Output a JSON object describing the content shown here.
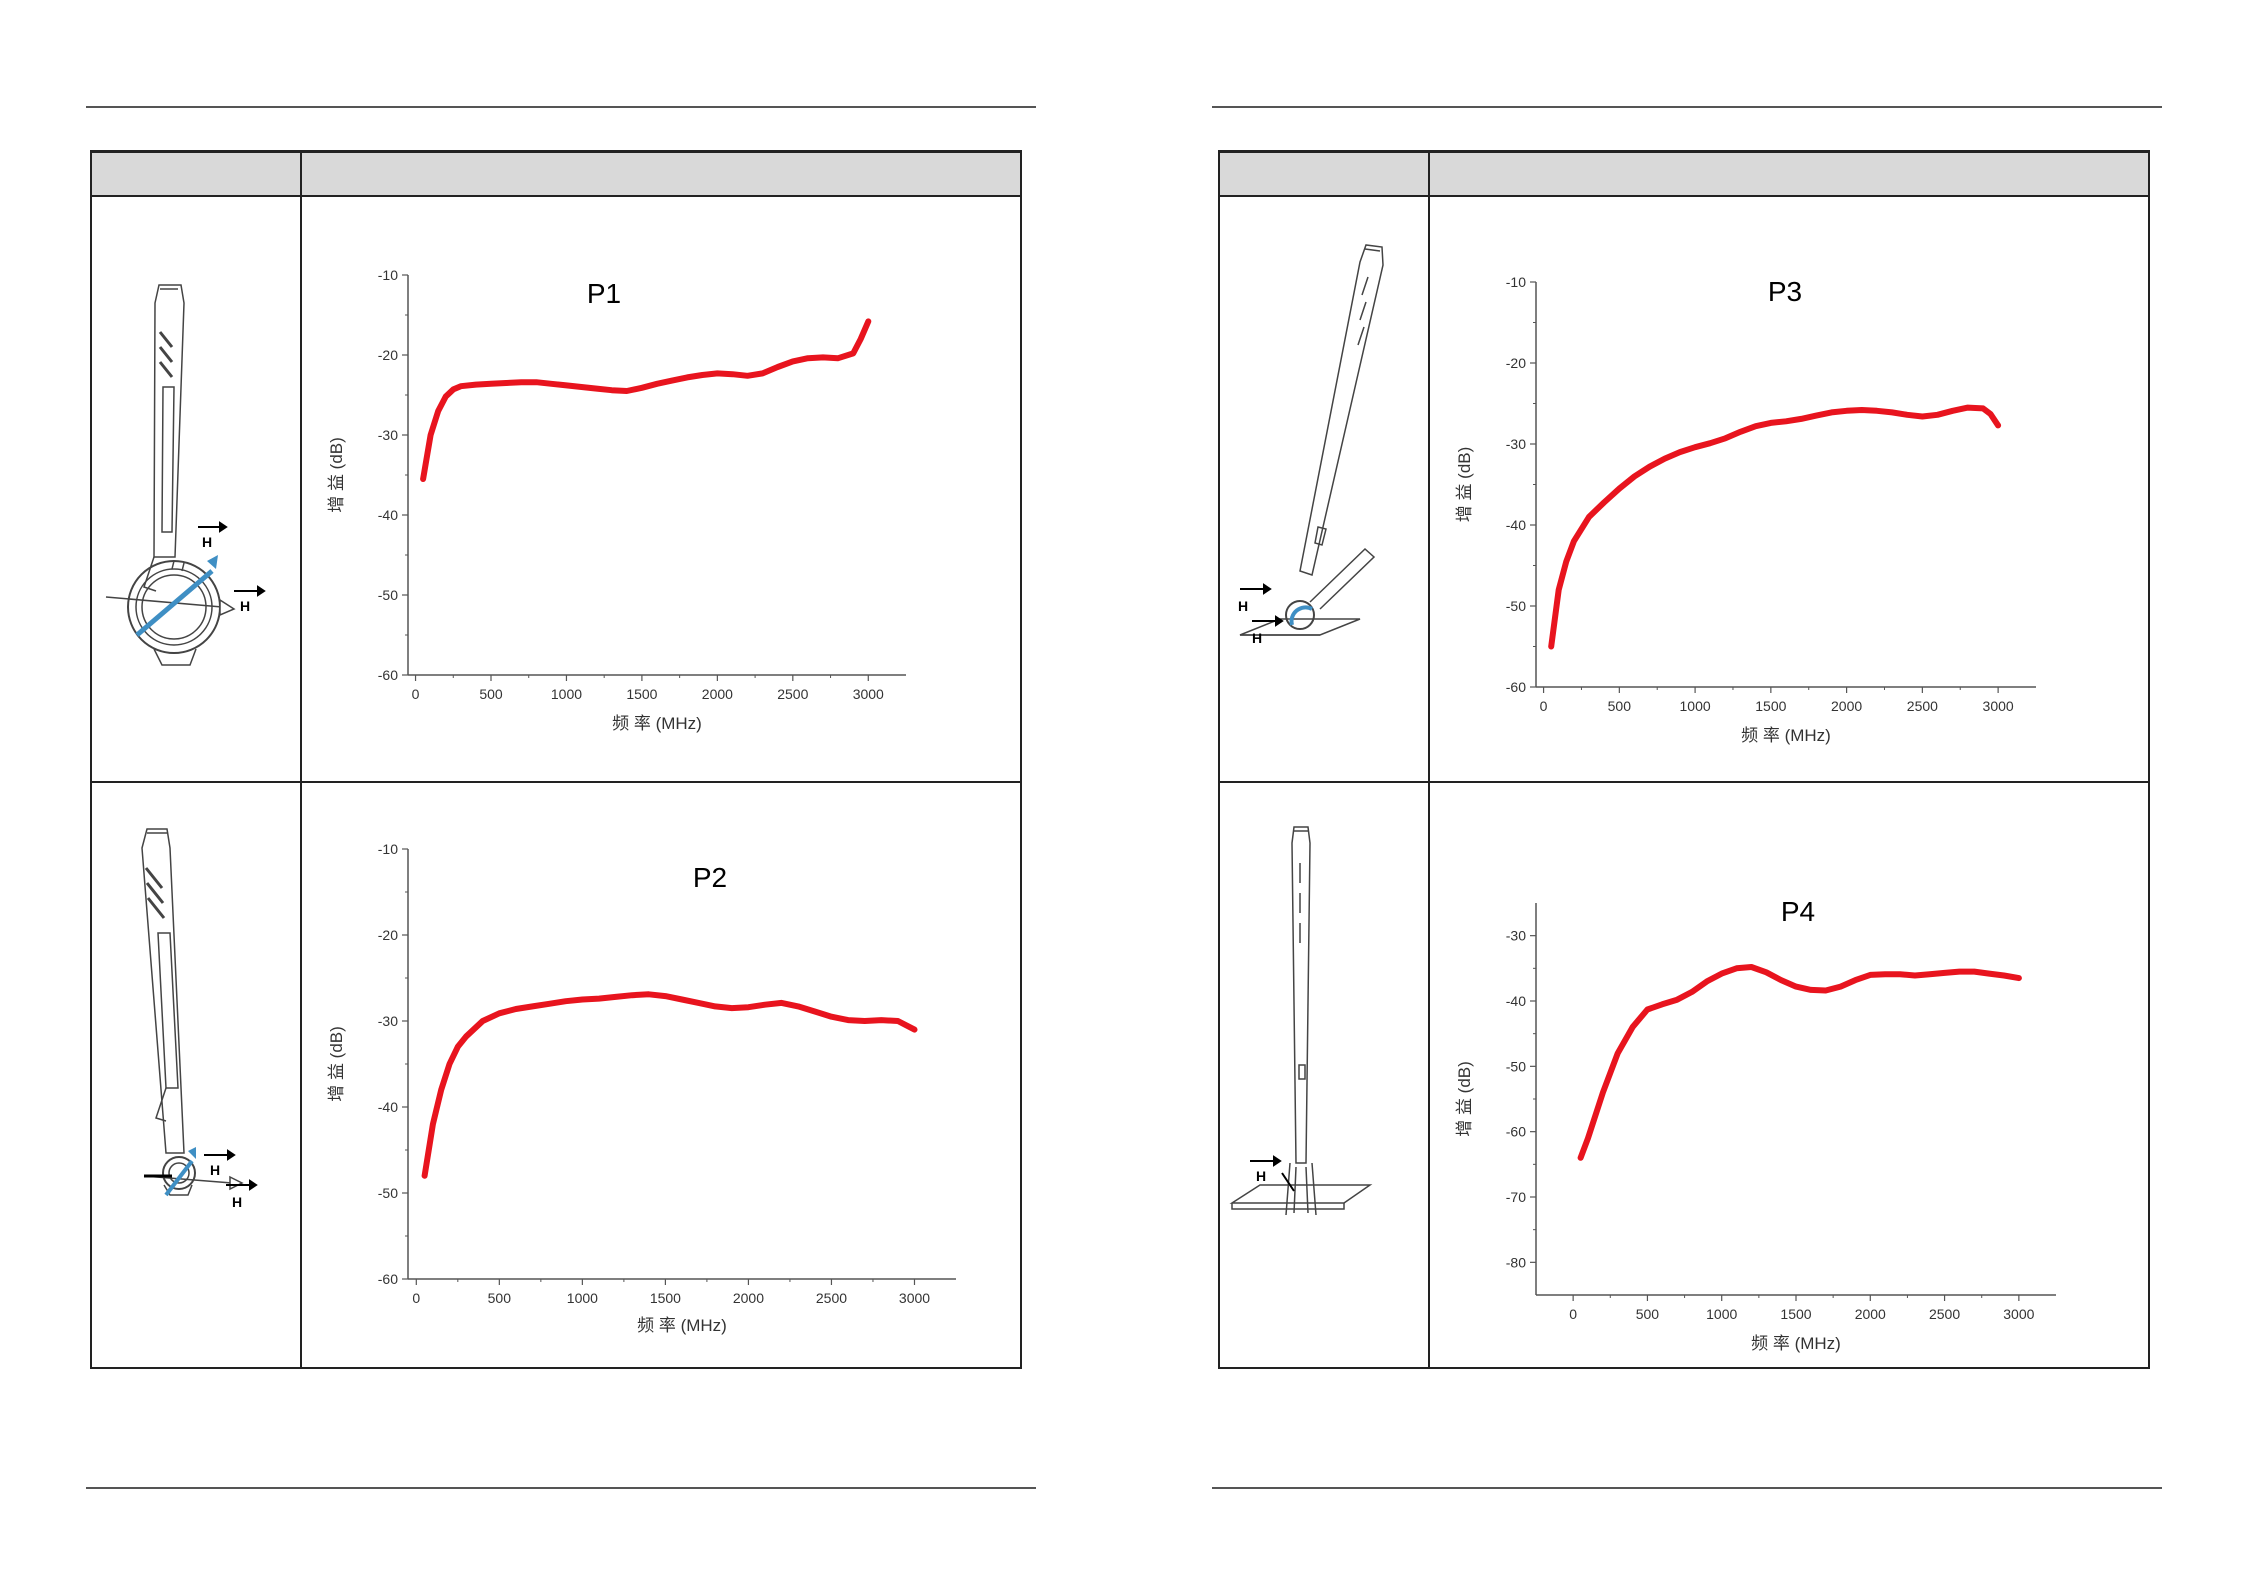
{
  "page": {
    "left_table": {
      "header": [
        "",
        ""
      ]
    },
    "right_table": {
      "header": [
        "",
        ""
      ]
    }
  },
  "diagram_labels": {
    "p1": [
      "H",
      "H"
    ],
    "p2": [
      "H",
      "H"
    ],
    "p3": [
      "H",
      "H"
    ],
    "p4": [
      "H"
    ]
  },
  "colors": {
    "curve": "#e8141e",
    "axis": "#555555",
    "header_bg": "#d9d9d9",
    "probe_accent": "#3f8fc4"
  },
  "icons": [
    "probe-loop-drawing",
    "probe-loop-side-drawing",
    "probe-tilted-drawing",
    "probe-vertical-board-drawing"
  ],
  "chart_data": [
    {
      "id": "p1",
      "type": "line",
      "title": "P1",
      "xlabel": "频 率 (MHz)",
      "ylabel": "增 益 (dB)",
      "xlim": [
        -50,
        3250
      ],
      "ylim": [
        -60,
        -10
      ],
      "xticks": [
        0,
        500,
        1000,
        1500,
        2000,
        2500,
        3000
      ],
      "yticks": [
        -10,
        -20,
        -30,
        -40,
        -50,
        -60
      ],
      "series": [
        {
          "x": [
            50,
            100,
            150,
            200,
            250,
            300,
            400,
            500,
            600,
            700,
            800,
            900,
            1000,
            1100,
            1200,
            1300,
            1400,
            1500,
            1600,
            1700,
            1800,
            1900,
            2000,
            2100,
            2200,
            2300,
            2400,
            2500,
            2600,
            2700,
            2800,
            2900,
            2950,
            3000
          ],
          "y": [
            -35.5,
            -30,
            -27,
            -25.2,
            -24.3,
            -23.9,
            -23.7,
            -23.6,
            -23.5,
            -23.4,
            -23.4,
            -23.6,
            -23.8,
            -24.0,
            -24.2,
            -24.4,
            -24.5,
            -24.1,
            -23.6,
            -23.2,
            -22.8,
            -22.5,
            -22.3,
            -22.4,
            -22.6,
            -22.3,
            -21.5,
            -20.8,
            -20.4,
            -20.3,
            -20.4,
            -19.8,
            -18,
            -15.8
          ]
        }
      ]
    },
    {
      "id": "p2",
      "type": "line",
      "title": "P2",
      "xlabel": "频 率 (MHz)",
      "ylabel": "增 益 (dB)",
      "xlim": [
        -50,
        3250
      ],
      "ylim": [
        -60,
        -10
      ],
      "xticks": [
        0,
        500,
        1000,
        1500,
        2000,
        2500,
        3000
      ],
      "yticks": [
        -10,
        -20,
        -30,
        -40,
        -50,
        -60
      ],
      "series": [
        {
          "x": [
            50,
            100,
            150,
            200,
            250,
            300,
            400,
            500,
            600,
            700,
            800,
            900,
            1000,
            1100,
            1200,
            1300,
            1400,
            1500,
            1600,
            1700,
            1800,
            1900,
            2000,
            2100,
            2200,
            2300,
            2400,
            2500,
            2600,
            2700,
            2800,
            2900,
            3000
          ],
          "y": [
            -48,
            -42,
            -38,
            -35,
            -33,
            -31.8,
            -30,
            -29.1,
            -28.6,
            -28.3,
            -28.0,
            -27.7,
            -27.5,
            -27.4,
            -27.2,
            -27.0,
            -26.9,
            -27.1,
            -27.5,
            -27.9,
            -28.3,
            -28.5,
            -28.4,
            -28.1,
            -27.9,
            -28.3,
            -28.9,
            -29.5,
            -29.9,
            -30.0,
            -29.9,
            -30.0,
            -31
          ]
        }
      ]
    },
    {
      "id": "p3",
      "type": "line",
      "title": "P3",
      "xlabel": "频 率 (MHz)",
      "ylabel": "增 益 (dB)",
      "xlim": [
        -50,
        3250
      ],
      "ylim": [
        -60,
        -10
      ],
      "xticks": [
        0,
        500,
        1000,
        1500,
        2000,
        2500,
        3000
      ],
      "yticks": [
        -10,
        -20,
        -30,
        -40,
        -50,
        -60
      ],
      "series": [
        {
          "x": [
            50,
            100,
            150,
            200,
            300,
            400,
            500,
            600,
            700,
            800,
            900,
            1000,
            1100,
            1200,
            1300,
            1400,
            1500,
            1600,
            1700,
            1800,
            1900,
            2000,
            2100,
            2200,
            2300,
            2400,
            2500,
            2600,
            2700,
            2800,
            2900,
            2950,
            3000
          ],
          "y": [
            -55,
            -48,
            -44.5,
            -42,
            -39,
            -37.2,
            -35.5,
            -34,
            -32.8,
            -31.8,
            -31.0,
            -30.4,
            -29.9,
            -29.3,
            -28.5,
            -27.8,
            -27.4,
            -27.2,
            -26.9,
            -26.5,
            -26.1,
            -25.9,
            -25.8,
            -25.9,
            -26.1,
            -26.4,
            -26.6,
            -26.4,
            -25.9,
            -25.5,
            -25.6,
            -26.3,
            -27.7
          ]
        }
      ]
    },
    {
      "id": "p4",
      "type": "line",
      "title": "P4",
      "xlabel": "频 率 (MHz)",
      "ylabel": "增 益 (dB)",
      "xlim": [
        -250,
        3250
      ],
      "ylim": [
        -85,
        -25
      ],
      "xticks": [
        0,
        500,
        1000,
        1500,
        2000,
        2500,
        3000
      ],
      "yticks": [
        -30,
        -40,
        -50,
        -60,
        -70,
        -80
      ],
      "series": [
        {
          "x": [
            50,
            100,
            200,
            300,
            400,
            500,
            600,
            700,
            800,
            900,
            1000,
            1100,
            1200,
            1300,
            1400,
            1500,
            1600,
            1700,
            1800,
            1900,
            2000,
            2100,
            2200,
            2300,
            2400,
            2500,
            2600,
            2700,
            2800,
            2900,
            3000
          ],
          "y": [
            -64,
            -61,
            -54,
            -48,
            -44,
            -41.3,
            -40.5,
            -39.8,
            -38.6,
            -37,
            -35.8,
            -35.0,
            -34.8,
            -35.6,
            -36.8,
            -37.8,
            -38.3,
            -38.4,
            -37.8,
            -36.8,
            -36.0,
            -35.9,
            -35.9,
            -36.1,
            -35.9,
            -35.7,
            -35.5,
            -35.5,
            -35.8,
            -36.1,
            -36.5
          ]
        }
      ]
    }
  ]
}
